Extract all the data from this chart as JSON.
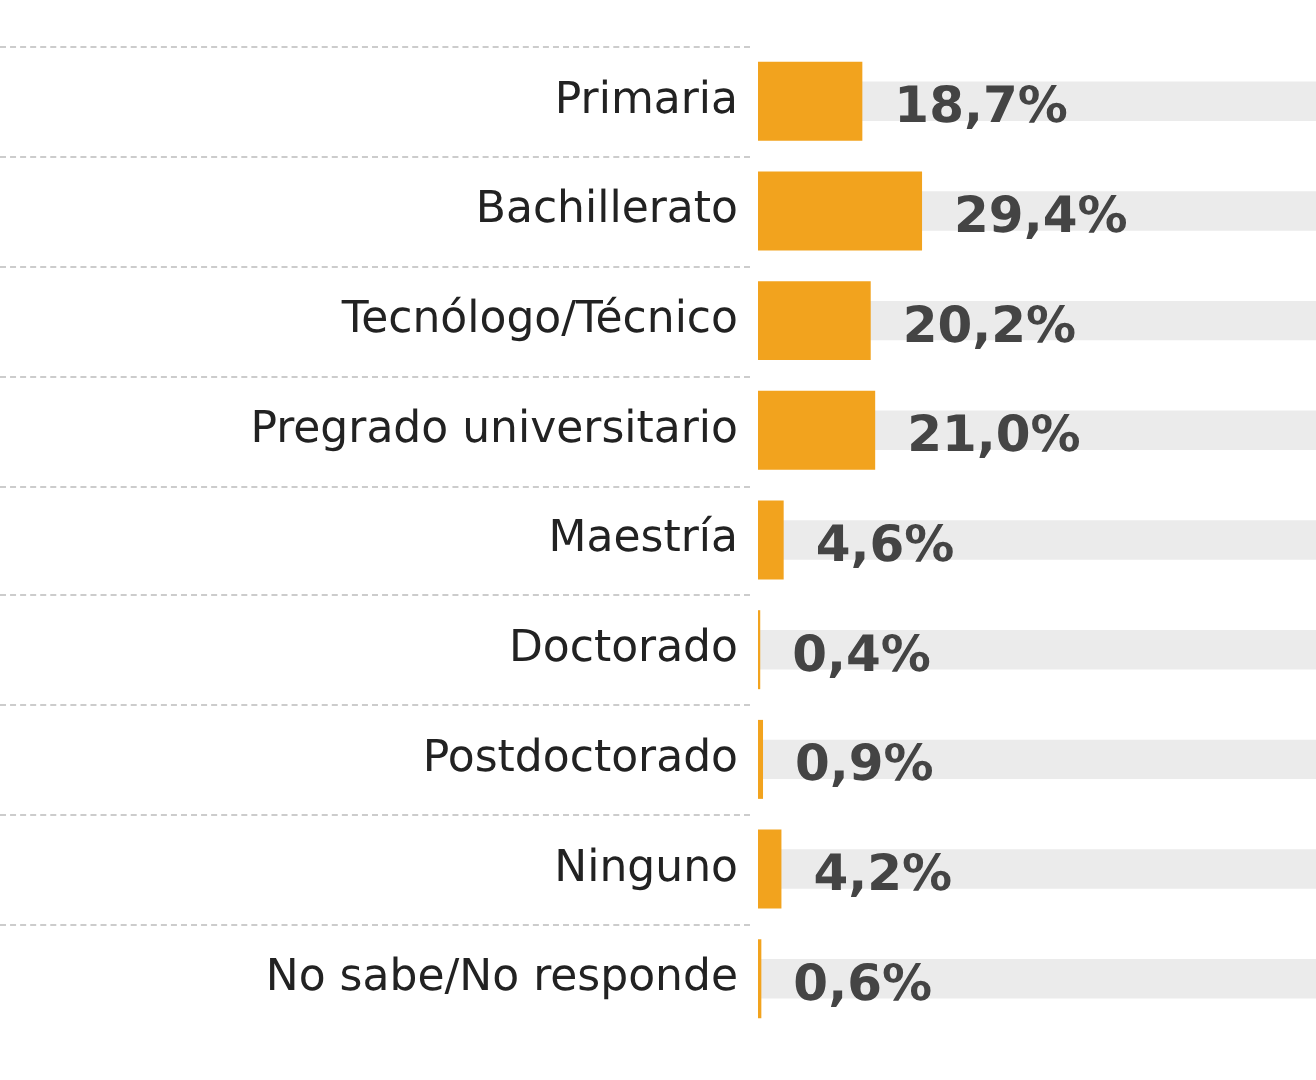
{
  "chart_data": {
    "type": "bar",
    "orientation": "horizontal",
    "categories": [
      "Primaria",
      "Bachillerato",
      "Tecnólogo/Técnico",
      "Pregrado universitario",
      "Maestría",
      "Doctorado",
      "Postdoctorado",
      "Ninguno",
      "No sabe/No responde"
    ],
    "series": [
      {
        "color": "#f2a31e",
        "values": [
          18.7,
          29.4,
          20.2,
          21.0,
          4.6,
          0.4,
          0.9,
          4.2,
          0.6
        ],
        "value_labels": [
          "18,7%",
          "29,4%",
          "20,2%",
          "21,0%",
          "4,6%",
          "0,4%",
          "0,9%",
          "4,2%",
          "0,6%"
        ]
      },
      {
        "color": "#ebebeb",
        "values": [
          100,
          100,
          100,
          100,
          100,
          100,
          100,
          100,
          100
        ]
      }
    ],
    "xlim": [
      0,
      100
    ],
    "grid": false,
    "legend": false,
    "tick_labels": "y"
  }
}
